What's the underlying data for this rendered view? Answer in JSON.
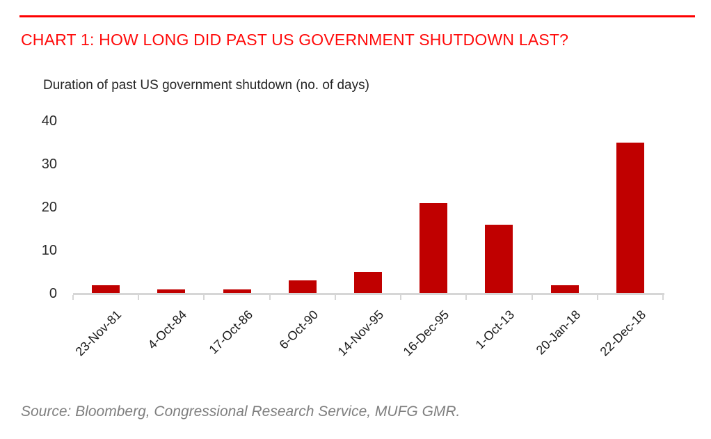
{
  "header": {
    "title": "CHART 1: HOW LONG DID PAST US GOVERNMENT SHUTDOWN LAST?",
    "rule_color": "#fe0000",
    "title_color": "#ff0a0a"
  },
  "chart_data": {
    "type": "bar",
    "title": "Duration of past US government shutdown (no. of days)",
    "categories": [
      "23-Nov-81",
      "4-Oct-84",
      "17-Oct-86",
      "6-Oct-90",
      "14-Nov-95",
      "16-Dec-95",
      "1-Oct-13",
      "20-Jan-18",
      "22-Dec-18"
    ],
    "values": [
      2,
      1,
      1,
      3,
      5,
      21,
      16,
      2,
      35
    ],
    "xlabel": "",
    "ylabel": "",
    "ylim": [
      0,
      40
    ],
    "yticks": [
      0,
      10,
      20,
      30,
      40
    ],
    "bar_color": "#c00000",
    "axis_color": "#d6d6d6",
    "grid": false,
    "legend_position": "none",
    "x_tick_rotation_deg": 45
  },
  "footer": {
    "source": "Source: Bloomberg, Congressional Research Service, MUFG GMR."
  }
}
